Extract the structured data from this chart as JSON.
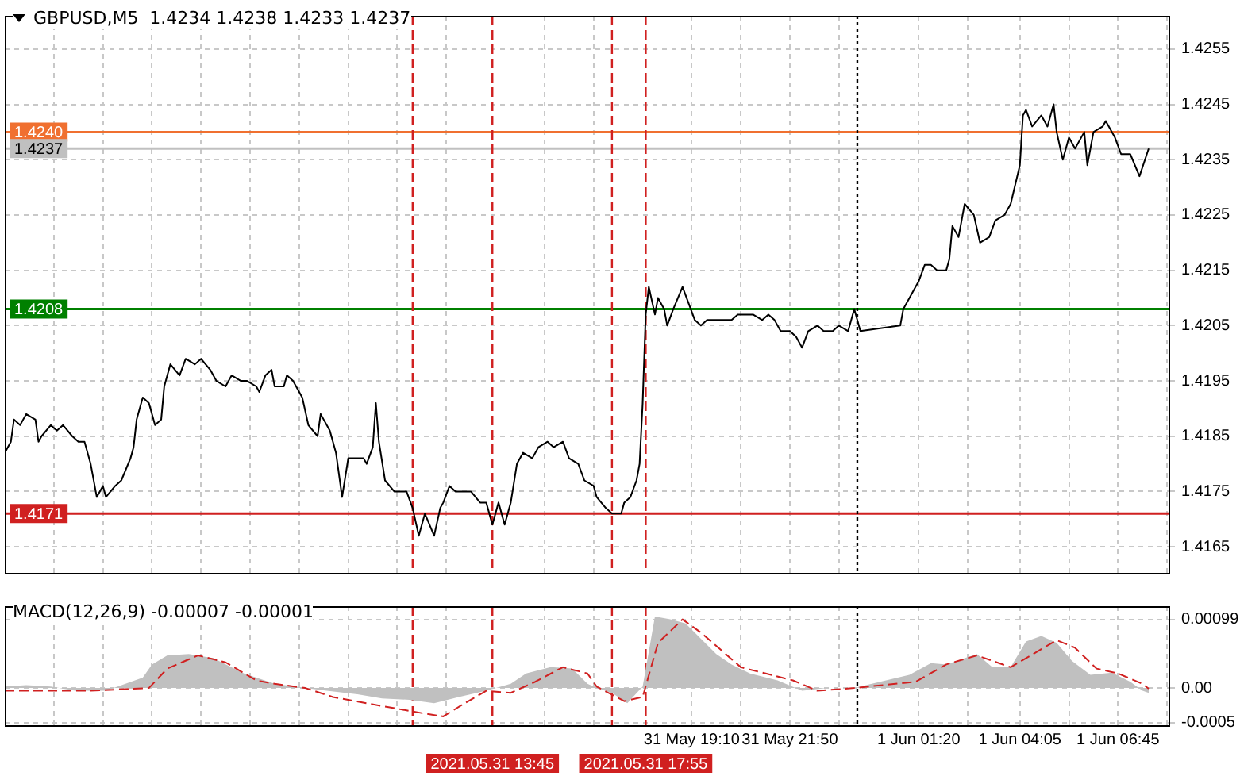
{
  "chart_data": [
    {
      "type": "line",
      "title": "GBPUSD,M5  1.4234 1.4238 1.4233 1.4237",
      "series": [
        {
          "color": "#000000",
          "x": [
            "2021-05-31T00:30",
            "2021-05-31T00:40",
            "2021-05-31T00:45",
            "2021-05-31T00:55",
            "2021-05-31T01:05",
            "2021-05-31T01:20",
            "2021-05-31T01:25",
            "2021-05-31T01:30",
            "2021-05-31T01:45",
            "2021-05-31T01:55",
            "2021-05-31T02:05",
            "2021-05-31T02:20",
            "2021-05-31T02:30",
            "2021-05-31T02:40",
            "2021-05-31T02:50",
            "2021-05-31T03:00",
            "2021-05-31T03:10",
            "2021-05-31T03:15",
            "2021-05-31T03:30",
            "2021-05-31T03:40",
            "2021-05-31T03:55",
            "2021-05-31T04:00",
            "2021-05-31T04:05",
            "2021-05-31T04:15",
            "2021-05-31T04:25",
            "2021-05-31T04:35",
            "2021-05-31T04:45",
            "2021-05-31T04:50",
            "2021-05-31T05:00",
            "2021-05-31T05:15",
            "2021-05-31T05:25",
            "2021-05-31T05:40",
            "2021-05-31T05:50",
            "2021-05-31T06:05",
            "2021-05-31T06:15",
            "2021-05-31T06:30",
            "2021-05-31T06:40",
            "2021-05-31T06:55",
            "2021-05-31T07:05",
            "2021-05-31T07:20",
            "2021-05-31T07:25",
            "2021-05-31T07:35",
            "2021-05-31T07:45",
            "2021-05-31T07:50",
            "2021-05-31T08:05",
            "2021-05-31T08:10",
            "2021-05-31T08:20",
            "2021-05-31T08:35",
            "2021-05-31T08:45",
            "2021-05-31T09:00",
            "2021-05-31T09:05",
            "2021-05-31T09:20",
            "2021-05-31T09:30",
            "2021-05-31T09:40",
            "2021-05-31T09:50",
            "2021-05-31T10:00",
            "2021-05-31T10:15",
            "2021-05-31T10:20",
            "2021-05-31T10:30",
            "2021-05-31T10:35",
            "2021-05-31T10:40",
            "2021-05-31T10:50",
            "2021-05-31T11:05",
            "2021-05-31T11:10",
            "2021-05-31T11:25",
            "2021-05-31T11:35",
            "2021-05-31T11:45",
            "2021-05-31T11:55",
            "2021-05-31T12:10",
            "2021-05-31T12:20",
            "2021-05-31T12:25",
            "2021-05-31T12:35",
            "2021-05-31T12:45",
            "2021-05-31T13:00",
            "2021-05-31T13:10",
            "2021-05-31T13:25",
            "2021-05-31T13:35",
            "2021-05-31T13:45",
            "2021-05-31T13:55",
            "2021-05-31T14:05",
            "2021-05-31T14:15",
            "2021-05-31T14:25",
            "2021-05-31T14:35",
            "2021-05-31T14:50",
            "2021-05-31T15:00",
            "2021-05-31T15:15",
            "2021-05-31T15:25",
            "2021-05-31T15:40",
            "2021-05-31T15:50",
            "2021-05-31T16:05",
            "2021-05-31T16:15",
            "2021-05-31T16:30",
            "2021-05-31T16:35",
            "2021-05-31T16:50",
            "2021-05-31T17:00",
            "2021-05-31T17:15",
            "2021-05-31T17:20",
            "2021-05-31T17:30",
            "2021-05-31T17:40",
            "2021-05-31T17:45",
            "2021-05-31T17:50",
            "2021-05-31T17:55",
            "2021-05-31T18:00",
            "2021-05-31T18:10",
            "2021-05-31T18:15",
            "2021-05-31T18:25",
            "2021-05-31T18:30",
            "2021-05-31T18:40",
            "2021-05-31T18:55",
            "2021-05-31T19:05",
            "2021-05-31T19:15",
            "2021-05-31T19:25",
            "2021-05-31T19:35",
            "2021-05-31T19:50",
            "2021-05-31T20:00",
            "2021-05-31T20:15",
            "2021-05-31T20:25",
            "2021-05-31T20:40",
            "2021-05-31T20:50",
            "2021-05-31T21:05",
            "2021-05-31T21:15",
            "2021-05-31T21:25",
            "2021-05-31T21:35",
            "2021-05-31T21:50",
            "2021-05-31T22:00",
            "2021-05-31T22:10",
            "2021-05-31T22:20",
            "2021-05-31T22:35",
            "2021-05-31T22:45",
            "2021-05-31T23:00",
            "2021-05-31T23:10",
            "2021-05-31T23:25",
            "2021-05-31T23:35",
            "2021-05-31T23:45",
            "2021-06-01T00:50",
            "2021-06-01T00:55",
            "2021-06-01T01:10",
            "2021-06-01T01:20",
            "2021-06-01T01:30",
            "2021-06-01T01:40",
            "2021-06-01T01:50",
            "2021-06-01T02:05",
            "2021-06-01T02:10",
            "2021-06-01T02:15",
            "2021-06-01T02:25",
            "2021-06-01T02:35",
            "2021-06-01T02:50",
            "2021-06-01T03:00",
            "2021-06-01T03:15",
            "2021-06-01T03:25",
            "2021-06-01T03:40",
            "2021-06-01T03:50",
            "2021-06-01T04:05",
            "2021-06-01T04:10",
            "2021-06-01T04:15",
            "2021-06-01T04:25",
            "2021-06-01T04:40",
            "2021-06-01T04:50",
            "2021-06-01T05:00",
            "2021-06-01T05:05",
            "2021-06-01T05:15",
            "2021-06-01T05:25",
            "2021-06-01T05:35",
            "2021-06-01T05:50",
            "2021-06-01T05:55",
            "2021-06-01T06:05",
            "2021-06-01T06:20",
            "2021-06-01T06:25",
            "2021-06-01T06:40",
            "2021-06-01T06:50",
            "2021-06-01T07:05",
            "2021-06-01T07:20",
            "2021-06-01T07:35"
          ],
          "values": [
            1.4182,
            1.4184,
            1.4188,
            1.4187,
            1.4189,
            1.4188,
            1.4184,
            1.4185,
            1.4187,
            1.4186,
            1.4187,
            1.4185,
            1.4184,
            1.4184,
            1.418,
            1.4174,
            1.4176,
            1.4174,
            1.4176,
            1.4177,
            1.4181,
            1.4183,
            1.4188,
            1.4192,
            1.4191,
            1.4187,
            1.4188,
            1.4194,
            1.4198,
            1.4196,
            1.4199,
            1.4198,
            1.4199,
            1.4197,
            1.4195,
            1.4194,
            1.4196,
            1.4195,
            1.4195,
            1.4194,
            1.4193,
            1.4196,
            1.4197,
            1.4194,
            1.4194,
            1.4196,
            1.4195,
            1.4192,
            1.4187,
            1.4185,
            1.4189,
            1.4186,
            1.4182,
            1.4174,
            1.4181,
            1.4181,
            1.4181,
            1.418,
            1.4183,
            1.4191,
            1.4184,
            1.4177,
            1.4175,
            1.4175,
            1.4175,
            1.4172,
            1.4167,
            1.4171,
            1.4167,
            1.4172,
            1.4173,
            1.4176,
            1.4175,
            1.4175,
            1.4175,
            1.4173,
            1.4173,
            1.4169,
            1.4173,
            1.4169,
            1.4173,
            1.418,
            1.4182,
            1.4181,
            1.4183,
            1.4184,
            1.4183,
            1.4184,
            1.4181,
            1.418,
            1.4177,
            1.4176,
            1.4174,
            1.4172,
            1.4171,
            1.4171,
            1.4173,
            1.4174,
            1.4177,
            1.418,
            1.4191,
            1.4207,
            1.4212,
            1.4207,
            1.421,
            1.4208,
            1.4205,
            1.4208,
            1.4212,
            1.4209,
            1.4206,
            1.4205,
            1.4206,
            1.4206,
            1.4206,
            1.4206,
            1.4207,
            1.4207,
            1.4207,
            1.4206,
            1.4207,
            1.4206,
            1.4204,
            1.4204,
            1.4203,
            1.4201,
            1.4204,
            1.4205,
            1.4204,
            1.4204,
            1.4205,
            1.4204,
            1.4208,
            1.4204,
            1.4205,
            1.4208,
            1.4211,
            1.4213,
            1.4216,
            1.4216,
            1.4215,
            1.4215,
            1.4217,
            1.4223,
            1.4221,
            1.4227,
            1.4225,
            1.422,
            1.4221,
            1.4224,
            1.4225,
            1.4227,
            1.4234,
            1.4243,
            1.4244,
            1.4241,
            1.4243,
            1.4241,
            1.4245,
            1.424,
            1.4235,
            1.4239,
            1.4237,
            1.424,
            1.4234,
            1.424,
            1.4241,
            1.4242,
            1.4239,
            1.4236,
            1.4236,
            1.4232,
            1.4237
          ]
        }
      ],
      "xlim": [
        "2021-05-31T00:30",
        "2021-06-01T08:10"
      ],
      "xticks": [
        {
          "value": "2021-05-31T01:50",
          "label": null
        },
        {
          "value": "2021-05-31T03:10",
          "label": null
        },
        {
          "value": "2021-05-31T04:30",
          "label": null
        },
        {
          "value": "2021-05-31T05:50",
          "label": null
        },
        {
          "value": "2021-05-31T07:10",
          "label": null
        },
        {
          "value": "2021-05-31T08:30",
          "label": null
        },
        {
          "value": "2021-05-31T09:50",
          "label": null
        },
        {
          "value": "2021-05-31T11:10",
          "label": null
        },
        {
          "value": "2021-05-31T12:30",
          "label": null
        },
        {
          "value": "2021-05-31T15:10",
          "label": null
        },
        {
          "value": "2021-05-31T16:30",
          "label": null
        },
        {
          "value": "2021-05-31T19:10",
          "label": null
        },
        {
          "value": "2021-05-31T20:30",
          "label": null
        },
        {
          "value": "2021-05-31T21:50",
          "label": null
        },
        {
          "value": "2021-05-31T23:10",
          "label": null
        },
        {
          "value": "2021-06-01T01:20",
          "label": null
        },
        {
          "value": "2021-06-01T02:40",
          "label": null
        },
        {
          "value": "2021-06-01T04:05",
          "label": null
        },
        {
          "value": "2021-06-01T05:25",
          "label": null
        },
        {
          "value": "2021-06-01T06:45",
          "label": null
        },
        {
          "value": "2021-06-01T08:05",
          "label": null
        }
      ],
      "ylim": [
        1.416,
        1.4261
      ],
      "yticks": [
        1.4165,
        1.4175,
        1.4185,
        1.4195,
        1.4205,
        1.4215,
        1.4225,
        1.4235,
        1.4245,
        1.4255
      ],
      "grid": true,
      "tick_labels": "y",
      "ref_lines": [
        {
          "axis": "y",
          "value": 1.424,
          "label": "1.4240",
          "color": "#f07030"
        },
        {
          "axis": "y",
          "value": 1.4237,
          "label": "1.4237",
          "color": "#c0c0c0"
        },
        {
          "axis": "y",
          "value": 1.4208,
          "label": "1.4208",
          "color": "#008000"
        },
        {
          "axis": "y",
          "value": 1.4171,
          "label": "1.4171",
          "color": "#d02020"
        },
        {
          "axis": "x",
          "value": "2021-05-31T11:35",
          "color": "#d02020",
          "line_style": "dashed"
        },
        {
          "axis": "x",
          "value": "2021-05-31T13:45",
          "color": "#d02020",
          "line_style": "dashed"
        },
        {
          "axis": "x",
          "value": "2021-05-31T17:00",
          "color": "#d02020",
          "line_style": "dashed"
        },
        {
          "axis": "x",
          "value": "2021-05-31T17:55",
          "color": "#d02020",
          "line_style": "dashed"
        },
        {
          "axis": "x",
          "value": "2021-05-31T23:40",
          "color": "#000000",
          "line_style": "dotted"
        }
      ]
    },
    {
      "type": "area",
      "title": "MACD(12,26,9) -0.00007 -0.00001",
      "series": [
        {
          "color": "#c0c0c0",
          "x": [
            "2021-05-31T00:30",
            "2021-05-31T01:05",
            "2021-05-31T01:45",
            "2021-05-31T02:25",
            "2021-05-31T03:15",
            "2021-05-31T04:15",
            "2021-05-31T04:30",
            "2021-05-31T04:55",
            "2021-05-31T05:30",
            "2021-05-31T06:10",
            "2021-05-31T07:00",
            "2021-05-31T07:50",
            "2021-05-31T08:40",
            "2021-05-31T09:15",
            "2021-05-31T10:05",
            "2021-05-31T10:45",
            "2021-05-31T11:30",
            "2021-05-31T12:10",
            "2021-05-31T12:50",
            "2021-05-31T13:35",
            "2021-05-31T14:15",
            "2021-05-31T14:40",
            "2021-05-31T15:20",
            "2021-05-31T15:55",
            "2021-05-31T16:20",
            "2021-05-31T16:35",
            "2021-05-31T17:00",
            "2021-05-31T17:25",
            "2021-05-31T17:50",
            "2021-05-31T18:10",
            "2021-05-31T18:35",
            "2021-05-31T19:00",
            "2021-05-31T19:25",
            "2021-05-31T19:50",
            "2021-05-31T20:15",
            "2021-05-31T20:45",
            "2021-05-31T21:30",
            "2021-05-31T22:10",
            "2021-05-31T22:50",
            "2021-05-31T23:35",
            "2021-06-01T01:05",
            "2021-06-01T01:40",
            "2021-06-01T02:05",
            "2021-06-01T02:35",
            "2021-06-01T02:55",
            "2021-06-01T03:20",
            "2021-06-01T03:50",
            "2021-06-01T04:15",
            "2021-06-01T04:40",
            "2021-06-01T05:05",
            "2021-06-01T05:30",
            "2021-06-01T06:00",
            "2021-06-01T06:35",
            "2021-06-01T07:05",
            "2021-06-01T07:25",
            "2021-06-01T07:35"
          ],
          "values": [
            2e-05,
            4e-05,
            2e-05,
            -4e-05,
            -4e-05,
            0.00015,
            0.00034,
            0.00047,
            0.00049,
            0.00043,
            0.00021,
            6e-05,
            0,
            -4e-05,
            -9e-05,
            -0.00015,
            -0.00017,
            -0.00022,
            -0.00013,
            -4e-05,
            6e-05,
            0.00021,
            0.0003,
            0.00028,
            6e-05,
            0,
            -7e-05,
            -0.00022,
            2e-05,
            0.00103,
            0.00099,
            0.00093,
            0.00071,
            0.00049,
            0.00034,
            0.00021,
            0.00011,
            -4e-05,
            0,
            0,
            0.00019,
            0.00036,
            0.00034,
            0.00043,
            0.00049,
            0.0003,
            0.0003,
            0.00067,
            0.00075,
            0.00065,
            0.00039,
            0.00019,
            0.00022,
            9e-05,
            -4e-05,
            -7e-05
          ]
        },
        {
          "type": "line",
          "color": "#d02020",
          "line_style": "dashed",
          "x": [
            "2021-05-31T00:30",
            "2021-05-31T01:05",
            "2021-05-31T02:50",
            "2021-05-31T04:25",
            "2021-05-31T04:55",
            "2021-05-31T05:45",
            "2021-05-31T06:30",
            "2021-05-31T07:20",
            "2021-05-31T07:50",
            "2021-05-31T08:40",
            "2021-05-31T09:25",
            "2021-05-31T10:45",
            "2021-05-31T11:55",
            "2021-05-31T12:25",
            "2021-05-31T13:00",
            "2021-05-31T13:35",
            "2021-05-31T14:15",
            "2021-05-31T14:55",
            "2021-05-31T15:40",
            "2021-05-31T16:20",
            "2021-05-31T16:35",
            "2021-05-31T17:20",
            "2021-05-31T17:50",
            "2021-05-31T18:15",
            "2021-05-31T18:55",
            "2021-05-31T19:25",
            "2021-05-31T20:30",
            "2021-05-31T21:55",
            "2021-05-31T22:35",
            "2021-05-31T23:35",
            "2021-06-01T01:15",
            "2021-06-01T02:05",
            "2021-06-01T02:55",
            "2021-06-01T03:50",
            "2021-06-01T05:05",
            "2021-06-01T05:35",
            "2021-06-01T06:10",
            "2021-06-01T06:45",
            "2021-06-01T07:25",
            "2021-06-01T07:35"
          ],
          "values": [
            -4e-05,
            -4e-05,
            -4e-05,
            0,
            0.00028,
            0.00047,
            0.00037,
            0.00011,
            6e-05,
            0,
            -0.00013,
            -0.00026,
            -0.00037,
            -0.00041,
            -0.00022,
            -4e-05,
            -7e-05,
            9e-05,
            0.0003,
            0.00021,
            2e-05,
            -0.00019,
            -0.00013,
            0.00065,
            0.00099,
            0.0008,
            0.0003,
            0.00011,
            -4e-05,
            0,
            9e-05,
            0.00034,
            0.00047,
            0.0003,
            0.00069,
            0.00058,
            0.00028,
            0.00021,
            6e-05,
            -1e-05
          ]
        }
      ],
      "xlim": [
        "2021-05-31T00:30",
        "2021-06-01T08:10"
      ],
      "xticks": [
        {
          "value": "2021-05-31T01:50",
          "label": null
        },
        {
          "value": "2021-05-31T03:10",
          "label": null
        },
        {
          "value": "2021-05-31T04:30",
          "label": null
        },
        {
          "value": "2021-05-31T05:50",
          "label": null
        },
        {
          "value": "2021-05-31T07:10",
          "label": null
        },
        {
          "value": "2021-05-31T08:30",
          "label": null
        },
        {
          "value": "2021-05-31T09:50",
          "label": null
        },
        {
          "value": "2021-05-31T11:10",
          "label": null
        },
        {
          "value": "2021-05-31T12:30",
          "label": null
        },
        {
          "value": "2021-05-31T15:10",
          "label": null
        },
        {
          "value": "2021-05-31T16:30",
          "label": null
        },
        {
          "value": "2021-05-31T19:10",
          "label": "31 May 19:10"
        },
        {
          "value": "2021-05-31T20:30",
          "label": null
        },
        {
          "value": "2021-05-31T21:50",
          "label": "31 May 21:50"
        },
        {
          "value": "2021-05-31T23:10",
          "label": null
        },
        {
          "value": "2021-06-01T01:20",
          "label": "1 Jun 01:20"
        },
        {
          "value": "2021-06-01T02:40",
          "label": null
        },
        {
          "value": "2021-06-01T04:05",
          "label": "1 Jun 04:05"
        },
        {
          "value": "2021-06-01T05:25",
          "label": null
        },
        {
          "value": "2021-06-01T06:45",
          "label": "1 Jun 06:45"
        },
        {
          "value": "2021-06-01T08:05",
          "label": null
        }
      ],
      "ylim": [
        -0.00056,
        0.00118
      ],
      "yticks": [
        -0.0005,
        {
          "value": 0,
          "label": "0.00"
        },
        0.00099
      ],
      "grid": true,
      "ref_lines": [
        {
          "axis": "x",
          "value": "2021-05-31T11:35",
          "color": "#d02020",
          "line_style": "dashed"
        },
        {
          "axis": "x",
          "value": "2021-05-31T13:45",
          "label": "2021.05.31 13:45",
          "color": "#d02020",
          "line_style": "dashed"
        },
        {
          "axis": "x",
          "value": "2021-05-31T17:00",
          "color": "#d02020",
          "line_style": "dashed"
        },
        {
          "axis": "x",
          "value": "2021-05-31T17:55",
          "label": "2021.05.31 17:55",
          "color": "#d02020",
          "line_style": "dashed"
        },
        {
          "axis": "x",
          "value": "2021-05-31T23:40",
          "color": "#000000",
          "line_style": "dotted"
        }
      ]
    }
  ]
}
